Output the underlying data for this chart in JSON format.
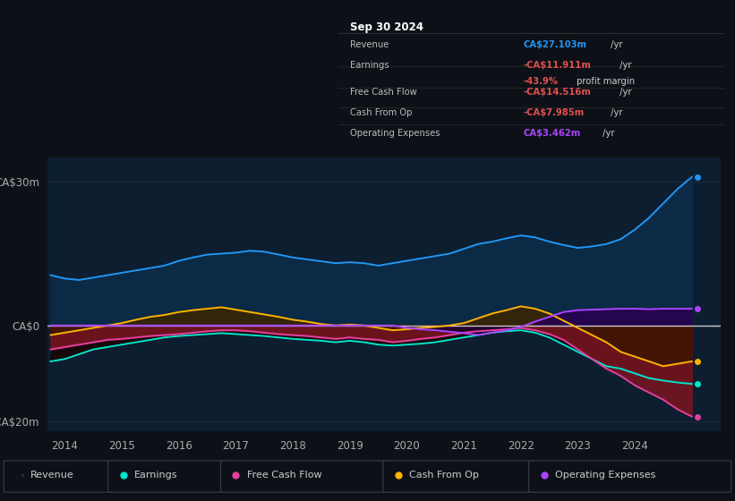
{
  "bg_color": "#0d1117",
  "plot_bg_color": "#0c1e30",
  "ylim": [
    -22,
    35
  ],
  "xlim": [
    2013.7,
    2025.5
  ],
  "xticks": [
    2014,
    2015,
    2016,
    2017,
    2018,
    2019,
    2020,
    2021,
    2022,
    2023,
    2024
  ],
  "zero_line_color": "#cccccc",
  "grid_color": "#1e2d3d",
  "series": {
    "revenue": {
      "color": "#2196f3",
      "fill_color": "#0a3a5c",
      "label": "Revenue"
    },
    "earnings": {
      "color": "#00e5cc",
      "fill_color": "#003322",
      "label": "Earnings"
    },
    "fcf": {
      "color": "#e040a0",
      "fill_color": "#5a0020",
      "label": "Free Cash Flow"
    },
    "cashop": {
      "color": "#ffb300",
      "fill_color": "#3a2a00",
      "label": "Cash From Op"
    },
    "opex": {
      "color": "#aa44ff",
      "fill_color": "#2a0044",
      "label": "Operating Expenses"
    }
  },
  "years": [
    2013.75,
    2014.0,
    2014.25,
    2014.5,
    2014.75,
    2015.0,
    2015.25,
    2015.5,
    2015.75,
    2016.0,
    2016.25,
    2016.5,
    2016.75,
    2017.0,
    2017.25,
    2017.5,
    2017.75,
    2018.0,
    2018.25,
    2018.5,
    2018.75,
    2019.0,
    2019.25,
    2019.5,
    2019.75,
    2020.0,
    2020.25,
    2020.5,
    2020.75,
    2021.0,
    2021.25,
    2021.5,
    2021.75,
    2022.0,
    2022.25,
    2022.5,
    2022.75,
    2023.0,
    2023.25,
    2023.5,
    2023.75,
    2024.0,
    2024.25,
    2024.5,
    2024.75,
    2025.0
  ],
  "revenue_data": [
    10.5,
    9.8,
    9.5,
    10.0,
    10.5,
    11.0,
    11.5,
    12.0,
    12.5,
    13.5,
    14.2,
    14.8,
    15.0,
    15.2,
    15.6,
    15.4,
    14.8,
    14.2,
    13.8,
    13.4,
    13.0,
    13.2,
    13.0,
    12.5,
    13.0,
    13.5,
    14.0,
    14.5,
    15.0,
    16.0,
    17.0,
    17.5,
    18.2,
    18.8,
    18.4,
    17.5,
    16.8,
    16.2,
    16.5,
    17.0,
    18.0,
    20.0,
    22.5,
    25.5,
    28.5,
    31.0
  ],
  "earnings_data": [
    -7.5,
    -7.0,
    -6.0,
    -5.0,
    -4.5,
    -4.0,
    -3.5,
    -3.0,
    -2.5,
    -2.2,
    -2.0,
    -1.8,
    -1.6,
    -1.8,
    -2.0,
    -2.2,
    -2.5,
    -2.8,
    -3.0,
    -3.2,
    -3.5,
    -3.2,
    -3.5,
    -4.0,
    -4.2,
    -4.0,
    -3.8,
    -3.5,
    -3.0,
    -2.5,
    -2.0,
    -1.5,
    -1.2,
    -1.0,
    -1.5,
    -2.5,
    -4.0,
    -5.5,
    -7.0,
    -8.5,
    -9.0,
    -10.0,
    -11.0,
    -11.5,
    -11.9,
    -12.2
  ],
  "fcf_data": [
    -5.0,
    -4.5,
    -4.0,
    -3.5,
    -3.0,
    -2.8,
    -2.5,
    -2.2,
    -2.0,
    -1.8,
    -1.5,
    -1.2,
    -1.0,
    -1.0,
    -1.2,
    -1.5,
    -1.8,
    -2.0,
    -2.2,
    -2.5,
    -2.8,
    -2.5,
    -2.8,
    -3.0,
    -3.5,
    -3.2,
    -2.8,
    -2.5,
    -2.0,
    -1.5,
    -1.2,
    -1.0,
    -0.8,
    -0.5,
    -1.0,
    -1.8,
    -3.0,
    -5.0,
    -7.0,
    -9.0,
    -10.5,
    -12.5,
    -14.0,
    -15.5,
    -17.5,
    -19.0
  ],
  "cashop_data": [
    -2.0,
    -1.5,
    -1.0,
    -0.5,
    0.0,
    0.5,
    1.2,
    1.8,
    2.2,
    2.8,
    3.2,
    3.5,
    3.8,
    3.3,
    2.8,
    2.3,
    1.8,
    1.2,
    0.8,
    0.3,
    0.0,
    0.2,
    0.0,
    -0.5,
    -1.0,
    -0.8,
    -0.5,
    -0.3,
    0.0,
    0.5,
    1.5,
    2.5,
    3.2,
    4.0,
    3.5,
    2.5,
    1.0,
    -0.5,
    -2.0,
    -3.5,
    -5.5,
    -6.5,
    -7.5,
    -8.5,
    -8.0,
    -7.5
  ],
  "opex_data": [
    0.0,
    0.0,
    0.0,
    0.0,
    0.0,
    0.0,
    0.0,
    0.0,
    0.0,
    0.0,
    0.0,
    0.0,
    0.0,
    0.0,
    0.0,
    0.0,
    0.0,
    0.0,
    0.0,
    0.0,
    0.0,
    0.0,
    0.0,
    0.0,
    0.0,
    -0.5,
    -0.8,
    -1.0,
    -1.3,
    -1.6,
    -2.0,
    -1.5,
    -1.0,
    -0.3,
    0.8,
    1.8,
    2.8,
    3.2,
    3.3,
    3.4,
    3.5,
    3.5,
    3.4,
    3.5,
    3.5,
    3.5
  ],
  "info_box": {
    "date": "Sep 30 2024",
    "rows": [
      {
        "label": "Revenue",
        "value": "CA$27.103m",
        "value_color": "#2196f3",
        "suffix": " /yr",
        "sub": null
      },
      {
        "label": "Earnings",
        "value": "-CA$11.911m",
        "value_color": "#e05050",
        "suffix": " /yr",
        "sub": "-43.9% profit margin",
        "sub_color": "#e05050"
      },
      {
        "label": "Free Cash Flow",
        "value": "-CA$14.516m",
        "value_color": "#e05050",
        "suffix": " /yr",
        "sub": null
      },
      {
        "label": "Cash From Op",
        "value": "-CA$7.985m",
        "value_color": "#e05050",
        "suffix": " /yr",
        "sub": null
      },
      {
        "label": "Operating Expenses",
        "value": "CA$3.462m",
        "value_color": "#aa44ff",
        "suffix": " /yr",
        "sub": null
      }
    ]
  },
  "legend": [
    {
      "label": "Revenue",
      "color": "#2196f3"
    },
    {
      "label": "Earnings",
      "color": "#00e5cc"
    },
    {
      "label": "Free Cash Flow",
      "color": "#e040a0"
    },
    {
      "label": "Cash From Op",
      "color": "#ffb300"
    },
    {
      "label": "Operating Expenses",
      "color": "#aa44ff"
    }
  ]
}
